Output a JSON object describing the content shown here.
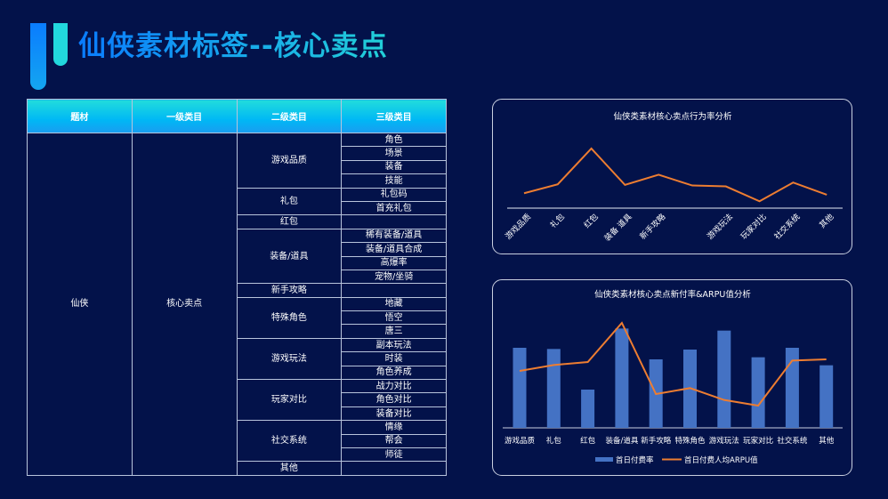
{
  "page_title": "仙侠素材标签--核心卖点",
  "table": {
    "headers": [
      "题材",
      "一级类目",
      "二级类目",
      "三级类目"
    ],
    "theme": "仙侠",
    "level1": "核心卖点",
    "groups": [
      {
        "name": "游戏品质",
        "items": [
          "角色",
          "场景",
          "装备",
          "技能"
        ]
      },
      {
        "name": "礼包",
        "items": [
          "礼包码",
          "首充礼包"
        ]
      },
      {
        "name": "红包",
        "items": [
          ""
        ]
      },
      {
        "name": "装备/道具",
        "items": [
          "稀有装备/道具",
          "装备/道具合成",
          "高爆率",
          "宠物/坐骑"
        ]
      },
      {
        "name": "新手攻略",
        "items": [
          ""
        ]
      },
      {
        "name": "特殊角色",
        "items": [
          "地藏",
          "悟空",
          "唐三"
        ]
      },
      {
        "name": "游戏玩法",
        "items": [
          "副本玩法",
          "时装",
          "角色养成"
        ]
      },
      {
        "name": "玩家对比",
        "items": [
          "战力对比",
          "角色对比",
          "装备对比"
        ]
      },
      {
        "name": "社交系统",
        "items": [
          "情缘",
          "帮会",
          "师徒"
        ]
      },
      {
        "name": "其他",
        "items": [
          ""
        ]
      }
    ]
  },
  "chart_data": [
    {
      "type": "line",
      "title": "仙侠类素材核心卖点行为率分析",
      "categories": [
        "游戏品质",
        "礼包",
        "红包",
        "装备 道具",
        "新手攻略",
        "",
        "游戏玩法",
        "玩家对比",
        "社交系统",
        "其他"
      ],
      "values": [
        50,
        80,
        200,
        78,
        112,
        76,
        73,
        23,
        86,
        45
      ],
      "ylim": [
        0,
        200
      ],
      "grid": false,
      "color": "#ed7d31"
    },
    {
      "type": "bar+line",
      "title": "仙侠类素材核心卖点新付率&ARPU值分析",
      "categories": [
        "游戏品质",
        "礼包",
        "红包",
        "装备/道具",
        "新手攻略",
        "特殊角色",
        "游戏玩法",
        "玩家对比",
        "社交系统",
        "其他"
      ],
      "series": [
        {
          "name": "首日付费率",
          "type": "bar",
          "color": "#4472c4",
          "values": [
            270,
            266,
            129,
            335,
            231,
            264,
            328,
            238,
            270,
            211
          ]
        },
        {
          "name": "首日付费人均ARPU值",
          "type": "line",
          "color": "#ed7d31",
          "values": [
            192,
            212,
            222,
            354,
            114,
            134,
            94,
            75,
            227,
            231
          ]
        }
      ],
      "ylim": [
        0,
        360
      ],
      "grid": false,
      "legend": "bottom"
    }
  ]
}
